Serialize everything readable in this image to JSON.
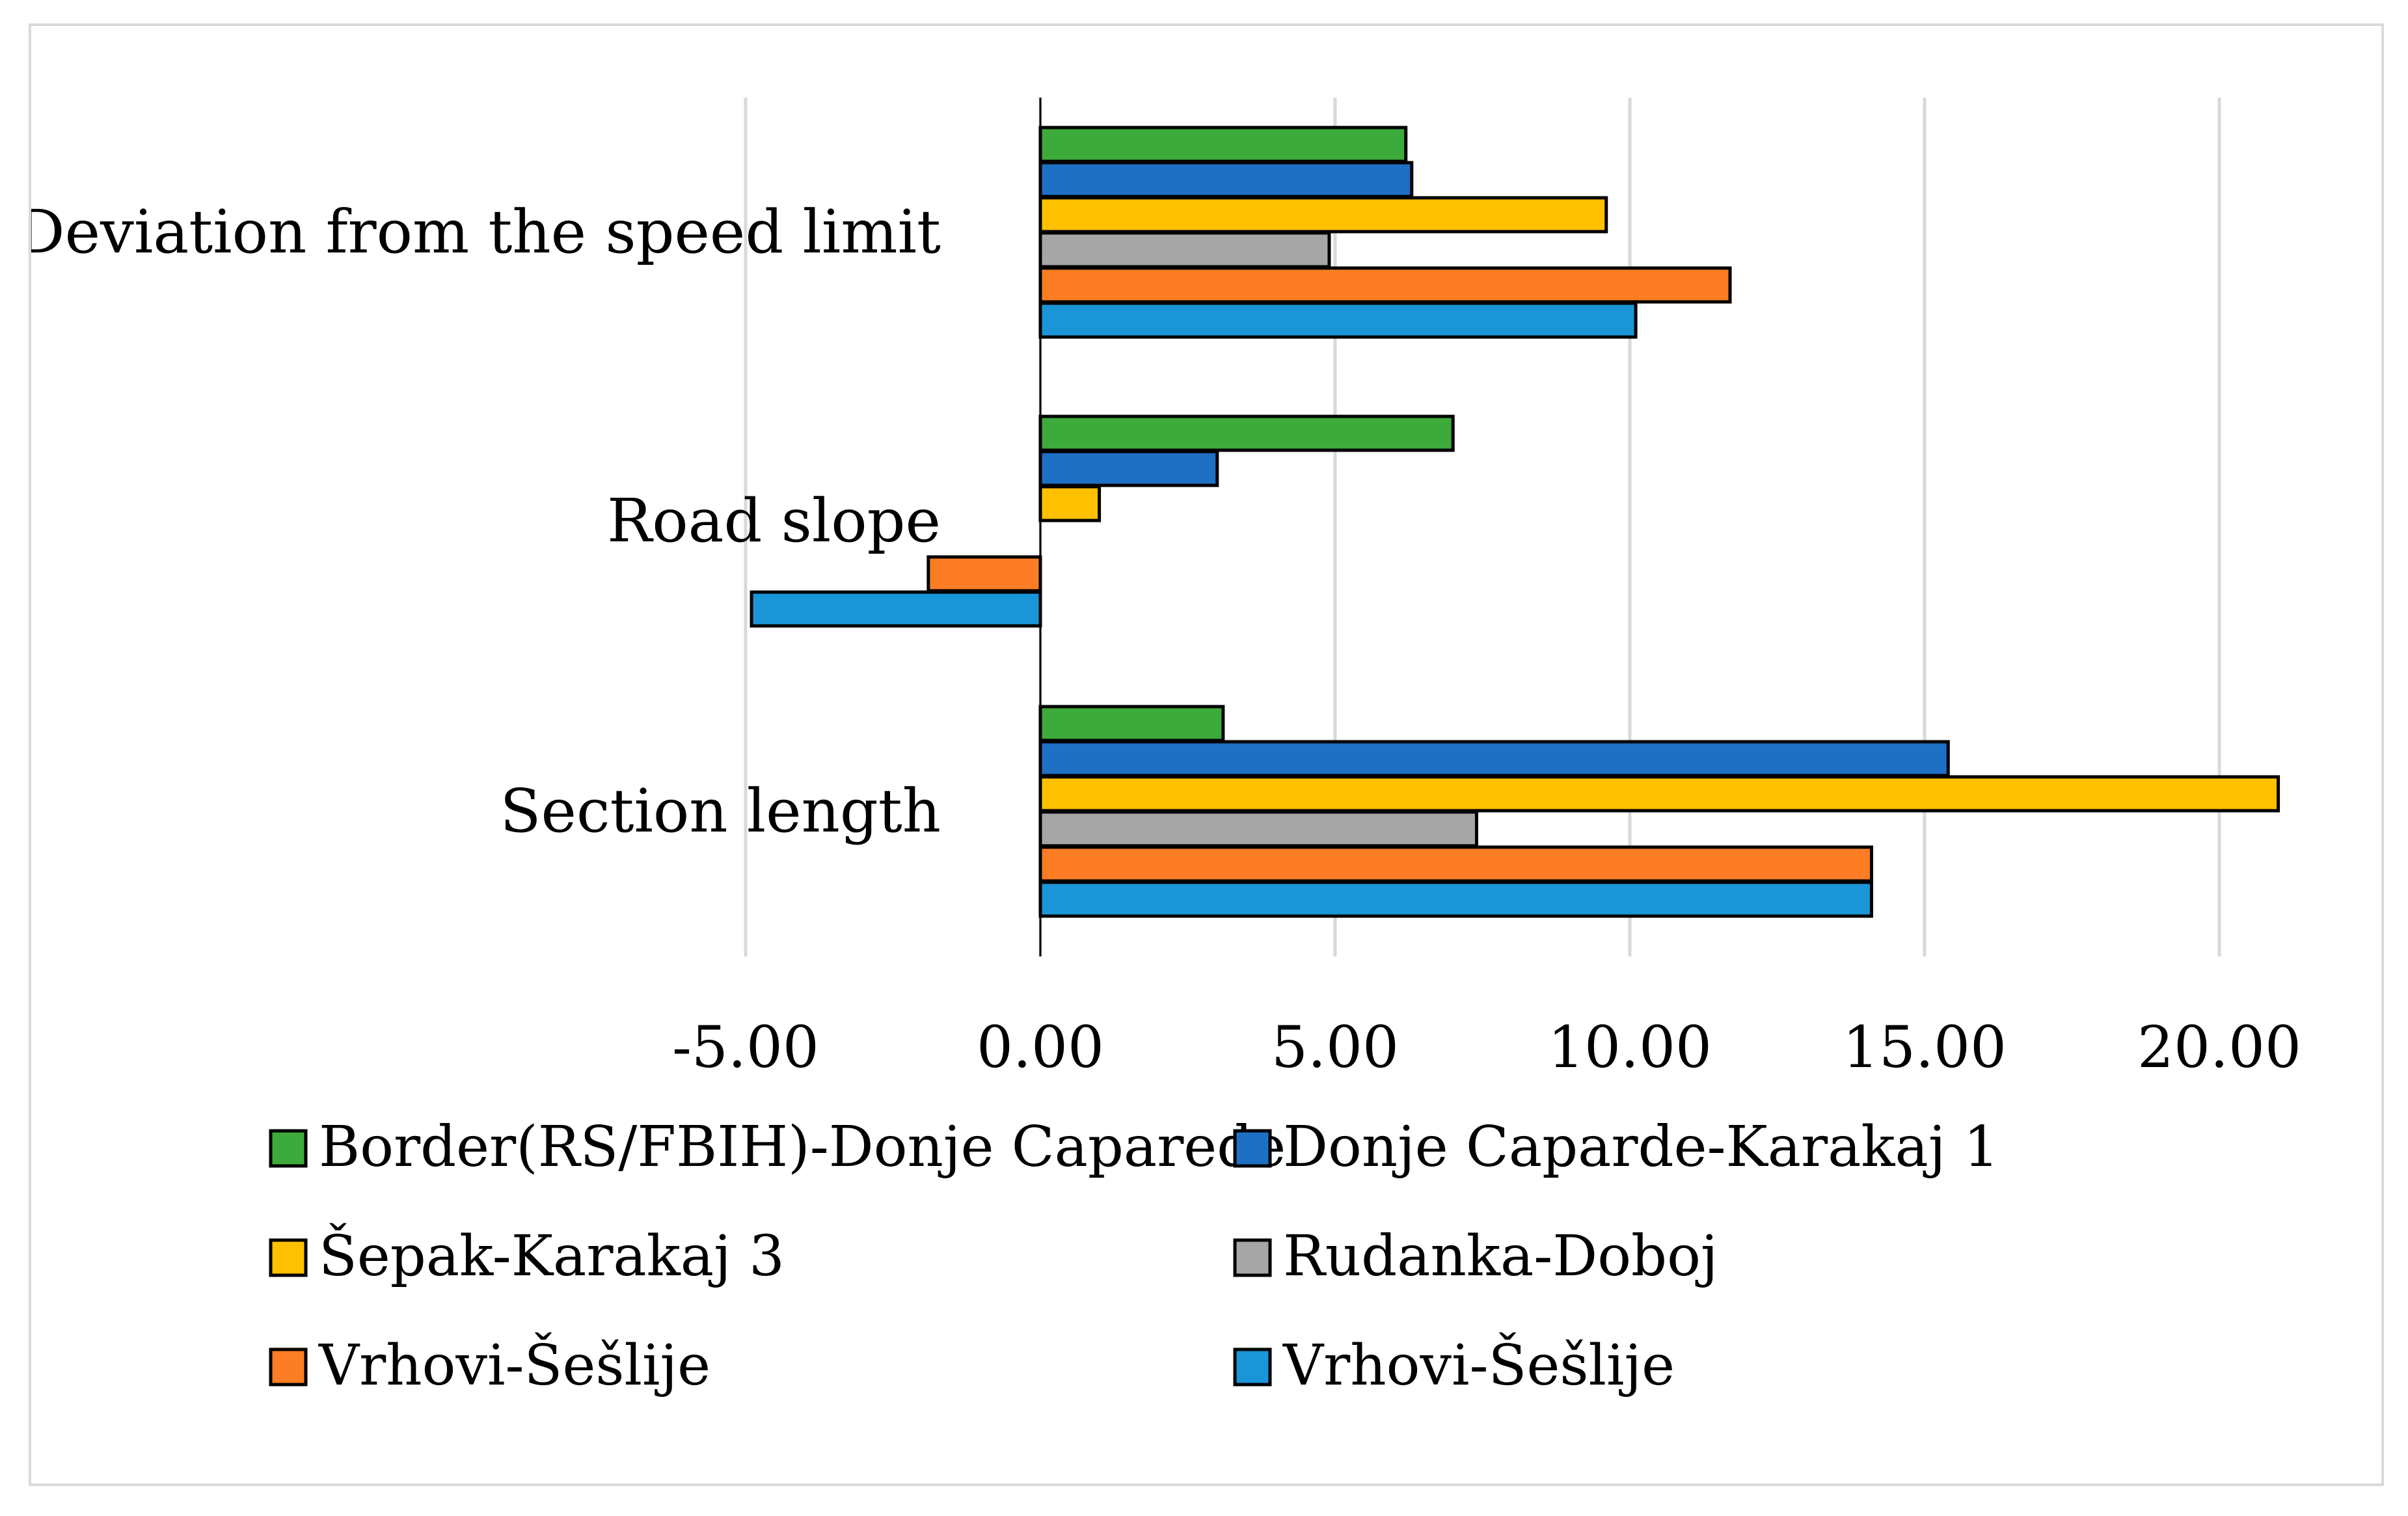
{
  "chart_data": {
    "type": "bar",
    "orientation": "horizontal",
    "title": "",
    "xlabel": "",
    "ylabel": "",
    "xlim": [
      -5,
      21
    ],
    "xticks": [
      -5,
      0,
      5,
      10,
      15,
      20
    ],
    "tick_labels": [
      "-5.00",
      "0.00",
      "5.00",
      "10.00",
      "15.00",
      "20.00"
    ],
    "grid": true,
    "legend_position": "bottom",
    "categories": [
      "Deviation from the speed limit",
      "Road slope",
      "Section length"
    ],
    "series": [
      {
        "name": "Border(RS/FBIH)-Donje Caparede",
        "color": "#3daa3c",
        "values": [
          6.2,
          7.0,
          3.1
        ]
      },
      {
        "name": "Donje Caparde-Karakaj 1",
        "color": "#1f6fc5",
        "values": [
          6.3,
          3.0,
          15.4
        ]
      },
      {
        "name": "Šepak-Karakaj 3",
        "color": "#ffc000",
        "values": [
          9.6,
          1.0,
          21.0
        ]
      },
      {
        "name": "Rudanka-Doboj",
        "color": "#a6a6a6",
        "values": [
          4.9,
          0.0,
          7.4
        ]
      },
      {
        "name": "Vrhovi-Šešlije",
        "color": "#fd7d24",
        "values": [
          11.7,
          -1.9,
          14.1
        ]
      },
      {
        "name": "Vrhovi-Šešlije",
        "color": "#1a96d8",
        "values": [
          10.1,
          -4.9,
          14.1
        ]
      }
    ]
  }
}
